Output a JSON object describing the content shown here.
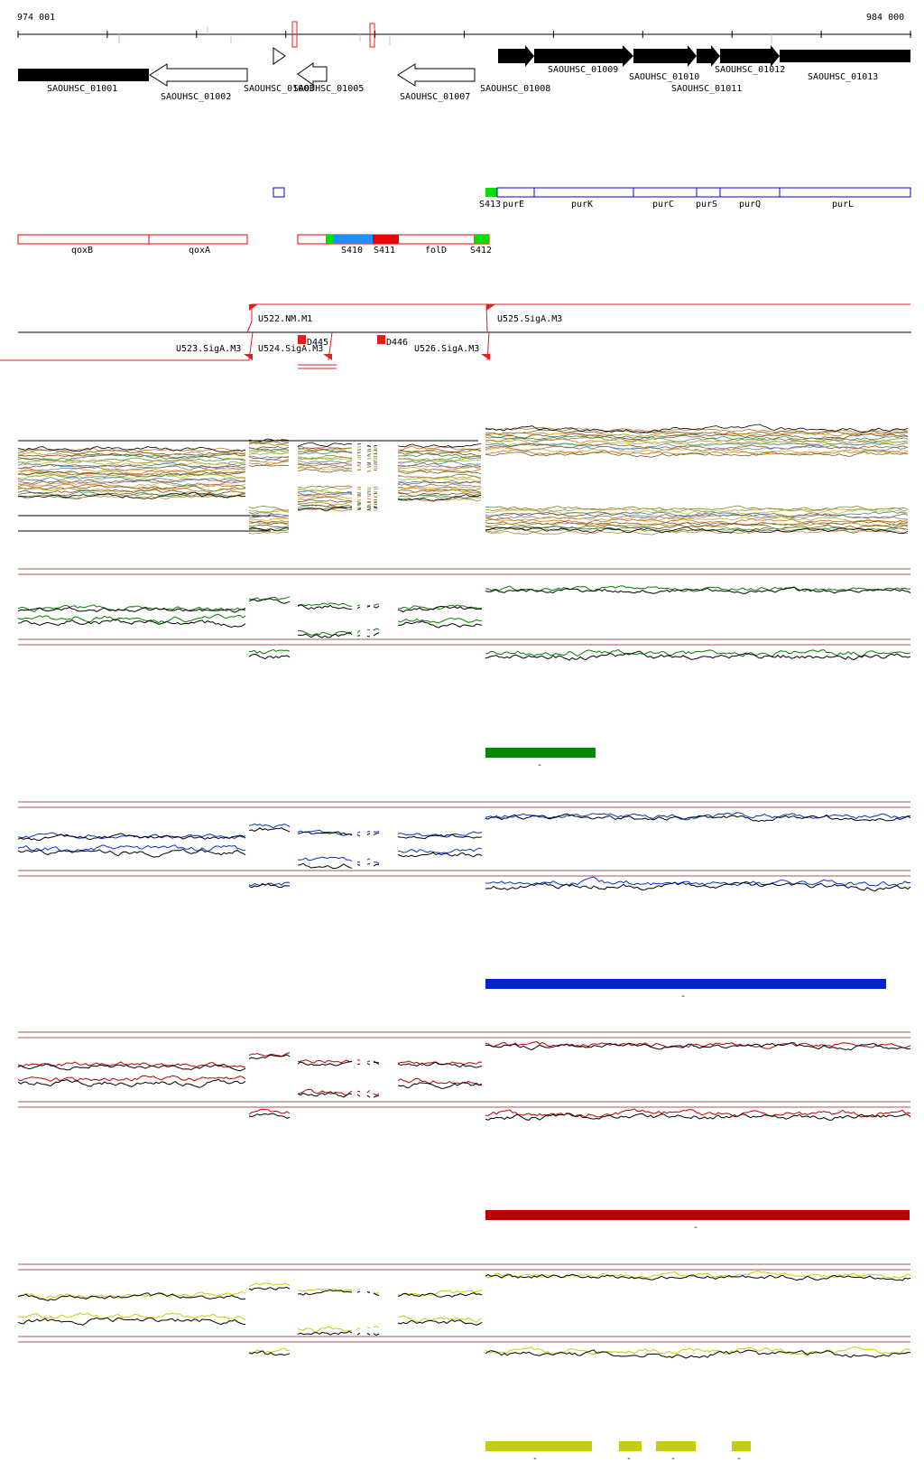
{
  "coords": {
    "start": "974 001",
    "end": "984 000"
  },
  "colors": {
    "gene_outline": "#000000",
    "operon_blue": "#0000cc",
    "operon_red": "#dd0000",
    "term_red": "#e02020",
    "seg_green": "#00dd00",
    "seg_blue": "#1e90ff",
    "seg_red": "#ee0000",
    "track_green": "#008000",
    "track_blue": "#0033cc",
    "track_red": "#bb0000",
    "track_yellow": "#cccc00",
    "ref_line": "#8b1a1a",
    "bar_green": "#008800",
    "bar_blue": "#0022cc",
    "bar_red": "#bb0000",
    "bar_yellow": "#c8cc11"
  },
  "genes": [
    {
      "id": "g1",
      "label": "SAOUHSC_01001",
      "strand": "+",
      "filled": true
    },
    {
      "id": "g2",
      "label": "SAOUHSC_01002",
      "strand": "-",
      "filled": false
    },
    {
      "id": "g3",
      "label": "SAOUHSC_01003",
      "strand": "+",
      "filled": false
    },
    {
      "id": "g4",
      "label": "SAOUHSC_01005",
      "strand": "-",
      "filled": false
    },
    {
      "id": "g5",
      "label": "SAOUHSC_01007",
      "strand": "-",
      "filled": false
    },
    {
      "id": "g6",
      "label": "SAOUHSC_01008",
      "strand": "+",
      "filled": true
    },
    {
      "id": "g7",
      "label": "SAOUHSC_01009",
      "strand": "+",
      "filled": true
    },
    {
      "id": "g8",
      "label": "SAOUHSC_01010",
      "strand": "+",
      "filled": true
    },
    {
      "id": "g9",
      "label": "SAOUHSC_01011",
      "strand": "+",
      "filled": true
    },
    {
      "id": "g10",
      "label": "SAOUHSC_01012",
      "strand": "+",
      "filled": true
    },
    {
      "id": "g11",
      "label": "SAOUHSC_01013",
      "strand": "+",
      "filled": true
    }
  ],
  "operon_blue_labels": [
    "S413",
    "purE",
    "purK",
    "purC",
    "purS",
    "purQ",
    "purL"
  ],
  "operon_red_labels": [
    "qoxB",
    "qoxA",
    "S410",
    "S411",
    "folD",
    "S412"
  ],
  "promoters": [
    "U522.NM.M1",
    "U523.SigA.M3",
    "U524.SigA.M3",
    "U525.SigA.M3",
    "U526.SigA.M3"
  ],
  "terminators": [
    "D445",
    "D446"
  ],
  "bars": {
    "green": [
      "-"
    ],
    "blue": [
      "-"
    ],
    "red": [
      "-"
    ],
    "yellow": [
      "-",
      "-",
      "-",
      "-"
    ]
  }
}
